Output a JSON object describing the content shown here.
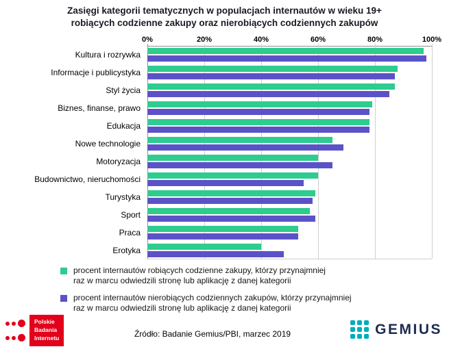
{
  "title": {
    "lines": [
      "Zasięgi kategorii tematycznych w populacjach internautów w wieku 19+",
      "robiących codzienne zakupy oraz nierobiących codziennych zakupów"
    ]
  },
  "chart_data": {
    "type": "bar",
    "orientation": "horizontal",
    "grid": true,
    "legend_position": "bottom",
    "xlim": [
      0,
      100
    ],
    "x_ticks": [
      "0%",
      "20%",
      "40%",
      "60%",
      "80%",
      "100%"
    ],
    "categories": [
      "Kultura i rozrywka",
      "Informacje i publicystyka",
      "Styl życia",
      "Biznes, finanse, prawo",
      "Edukacja",
      "Nowe technologie",
      "Motoryzacja",
      "Budownictwo, nieruchomości",
      "Turystyka",
      "Sport",
      "Praca",
      "Erotyka"
    ],
    "series": [
      {
        "key": "daily-shoppers",
        "name": "procent internautów robiących codzienne zakupy, którzy przynajmniej raz w marcu odwiedzili stronę lub aplikację z danej kategorii",
        "legend_lines": [
          "procent internautów robiących codzienne zakupy, którzy przynajmniej",
          "raz w marcu odwiedzili stronę lub aplikację z danej kategorii"
        ],
        "color": "#2ecc8f",
        "values": [
          97,
          88,
          87,
          79,
          78,
          65,
          60,
          60,
          59,
          57,
          53,
          40
        ]
      },
      {
        "key": "non-daily-shoppers",
        "name": "procent internautów nierobiących codziennych zakupów, którzy przynajmniej raz w marcu odwiedzili stronę lub aplikację z danej kategorii",
        "legend_lines": [
          "procent internautów nierobiących codziennych zakupów, którzy przynajmniej",
          "raz w marcu odwiedzili stronę lub aplikację z danej kategorii"
        ],
        "color": "#5b52c8",
        "values": [
          98,
          87,
          85,
          78,
          78,
          69,
          65,
          55,
          58,
          59,
          53,
          48
        ]
      }
    ]
  },
  "footer": {
    "source": "Źródło: Badanie Gemius/PBI, marzec 2019",
    "pbi_logo": {
      "lines": [
        "Polskie",
        "Badania",
        "Internetu"
      ],
      "color": "#e2001a"
    },
    "gemius_logo": {
      "text": "GEMIUS",
      "dot_color": "#00aebb",
      "text_color": "#1d2a52"
    }
  }
}
